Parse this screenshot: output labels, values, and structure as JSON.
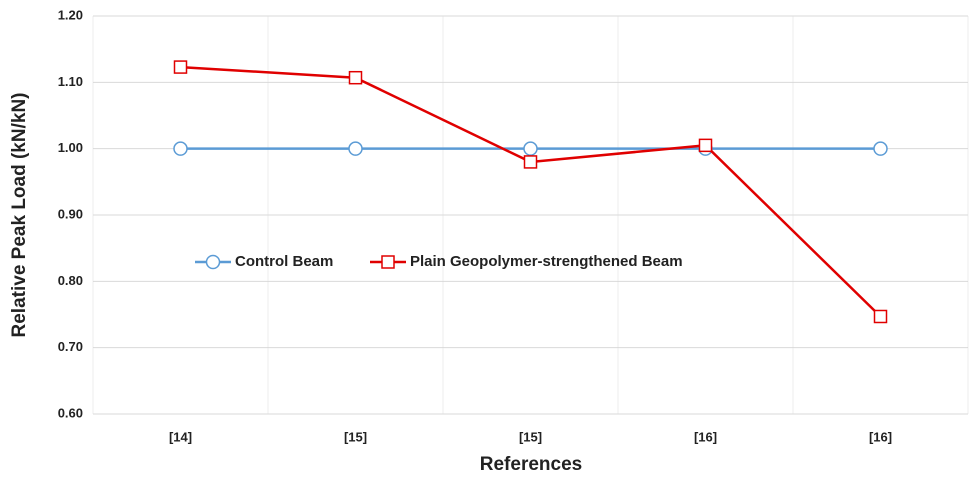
{
  "chart_data": {
    "type": "line",
    "xlabel": "References",
    "ylabel": "Relative Peak Load (kN/kN)",
    "categories": [
      "[14]",
      "[15]",
      "[15]",
      "[16]",
      "[16]"
    ],
    "series": [
      {
        "name": "Control Beam",
        "color": "#5b9bd5",
        "marker": "circle",
        "values": [
          1.0,
          1.0,
          1.0,
          1.0,
          1.0
        ]
      },
      {
        "name": "Plain Geopolymer-strengthened Beam",
        "color": "#e00000",
        "marker": "square",
        "values": [
          1.123,
          1.107,
          0.98,
          1.005,
          0.747
        ]
      }
    ],
    "ylim": [
      0.6,
      1.2
    ],
    "yticks": [
      {
        "value": 0.6,
        "label": "0.60"
      },
      {
        "value": 0.7,
        "label": "0.70"
      },
      {
        "value": 0.8,
        "label": "0.80"
      },
      {
        "value": 0.9,
        "label": "0.90"
      },
      {
        "value": 1.0,
        "label": "1.00"
      },
      {
        "value": 1.1,
        "label": "1.10"
      },
      {
        "value": 1.2,
        "label": "1.20"
      }
    ],
    "grid": true
  }
}
